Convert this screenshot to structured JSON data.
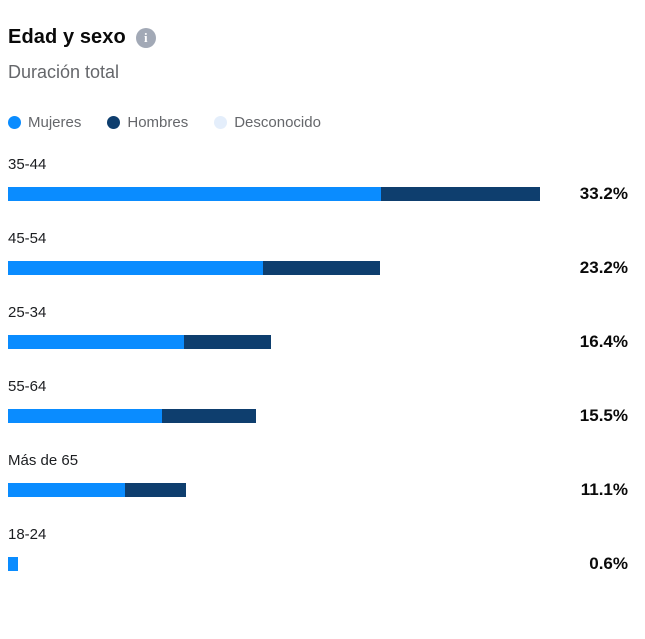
{
  "header": {
    "title": "Edad y sexo",
    "subtitle": "Duración total",
    "info_icon": "info-tooltip",
    "info_glyph": "i"
  },
  "colors": {
    "mujeres": "#0a8cff",
    "hombres": "#0e3e6e",
    "desconocido": "#e4eefb",
    "title_text": "#0a0a0a",
    "muted_text": "#65676b",
    "label_text": "#1c1e21"
  },
  "legend": {
    "items": [
      {
        "label": "Mujeres",
        "color": "#0a8cff"
      },
      {
        "label": "Hombres",
        "color": "#0e3e6e"
      },
      {
        "label": "Desconocido",
        "color": "#e4eefb"
      }
    ]
  },
  "chart_data": {
    "type": "bar",
    "orientation": "horizontal",
    "title": "Edad y sexo",
    "subtitle": "Duración total",
    "categories": [
      "35-44",
      "45-54",
      "25-34",
      "55-64",
      "Más de 65",
      "18-24"
    ],
    "totals": [
      33.2,
      23.2,
      16.4,
      15.5,
      11.1,
      0.6
    ],
    "total_labels": [
      "33.2%",
      "23.2%",
      "16.4%",
      "15.5%",
      "11.1%",
      "0.6%"
    ],
    "series": [
      {
        "name": "Mujeres",
        "color": "#0a8cff",
        "values": [
          23.3,
          15.9,
          11.0,
          9.6,
          7.3,
          0.6
        ]
      },
      {
        "name": "Hombres",
        "color": "#0e3e6e",
        "values": [
          9.9,
          7.3,
          5.4,
          5.9,
          3.8,
          0.0
        ]
      },
      {
        "name": "Desconocido",
        "color": "#e4eefb",
        "values": [
          0,
          0,
          0,
          0,
          0,
          0
        ]
      }
    ],
    "xlim": [
      0,
      33.2
    ],
    "value_suffix": "%",
    "grid": false,
    "legend_position": "top",
    "bars_sorted_desc": true
  }
}
